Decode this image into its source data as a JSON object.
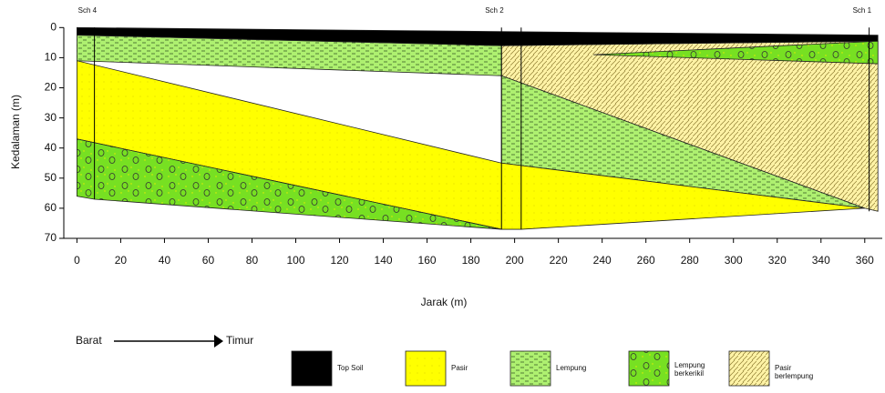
{
  "chart_data": {
    "type": "cross-section",
    "xlabel": "Jarak (m)",
    "ylabel": "Kedalaman (m)",
    "xlim": [
      -6,
      368
    ],
    "ylim": [
      -1,
      70
    ],
    "xticks": [
      0,
      20,
      40,
      60,
      80,
      100,
      120,
      140,
      160,
      180,
      200,
      220,
      240,
      260,
      280,
      300,
      320,
      340,
      360
    ],
    "yticks": [
      0,
      10,
      20,
      30,
      40,
      50,
      60,
      70
    ],
    "layers": [
      {
        "name": "Pasir berlempung",
        "color": "#fff3a6",
        "polygons": [
          {
            "x": [
              0,
              194,
              366,
              366,
              360,
              194
            ],
            "y": [
              2.5,
              6,
              4.5,
              61,
              60,
              16
            ]
          }
        ]
      },
      {
        "name": "Lempung",
        "color": "#aef070",
        "polygons": [
          {
            "x": [
              0,
              194,
              194,
              0
            ],
            "y": [
              2.5,
              6,
              16,
              11
            ]
          },
          {
            "x": [
              194,
              360,
              194
            ],
            "y": [
              16,
              60,
              45
            ]
          }
        ]
      },
      {
        "name": "Pasir",
        "color": "#ffff00",
        "polygons": [
          {
            "x": [
              0,
              194,
              360,
              203,
              194,
              0
            ],
            "y": [
              11,
              45,
              60,
              67,
              67,
              37
            ]
          }
        ]
      },
      {
        "name": "Lempung berkerikil",
        "color": "#77e022",
        "polygons": [
          {
            "x": [
              0,
              194,
              8,
              0
            ],
            "y": [
              37,
              67,
              57,
              56
            ]
          },
          {
            "x": [
              236,
              366,
              366
            ],
            "y": [
              9,
              4.5,
              12
            ]
          }
        ]
      },
      {
        "name": "Top Soil",
        "color": "#000000",
        "polygons": [
          {
            "x": [
              0,
              366,
              366,
              194,
              0
            ],
            "y": [
              0,
              2.5,
              4.5,
              6,
              2.5
            ]
          }
        ]
      }
    ],
    "legend_order": [
      4,
      2,
      1,
      3,
      0
    ],
    "boreholes": [
      {
        "name": "Sch 4",
        "x": [
          8
        ],
        "depth": 57
      },
      {
        "name": "Sch 2",
        "x": [
          194,
          203
        ],
        "depth": 67
      },
      {
        "name": "Sch 1",
        "x": [
          362
        ],
        "depth": 61
      }
    ],
    "direction": {
      "from": "Barat",
      "to": "Timur"
    }
  }
}
